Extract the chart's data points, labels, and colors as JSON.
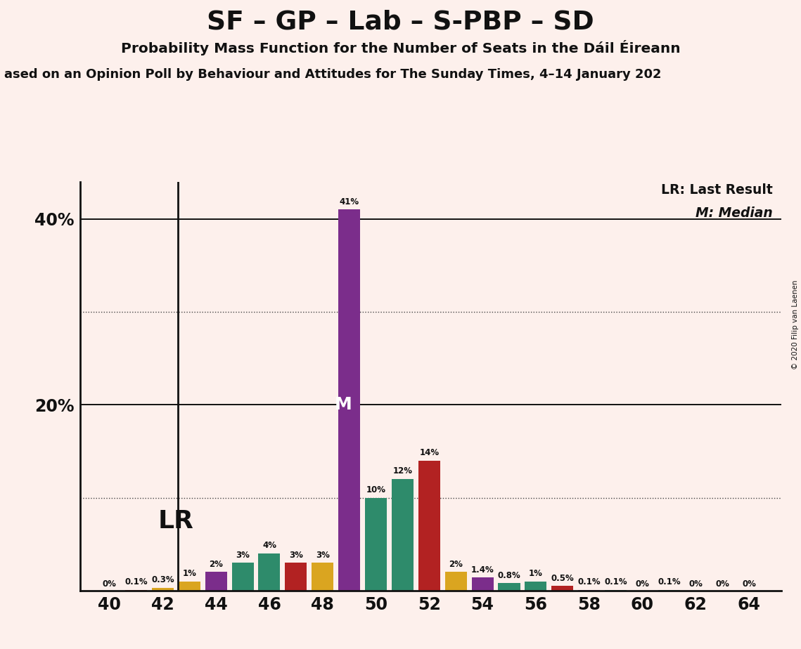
{
  "title": "SF – GP – Lab – S-PBP – SD",
  "subtitle": "Probability Mass Function for the Number of Seats in the Dáil Éireann",
  "source_line": "ased on an Opinion Poll by Behaviour and Attitudes for The Sunday Times, 4–14 January 202",
  "copyright": "© 2020 Filip van Laenen",
  "background_color": "#fdf0ec",
  "bars": [
    [
      40,
      0.0,
      "#888888"
    ],
    [
      41,
      0.1,
      "#B22222"
    ],
    [
      42,
      0.3,
      "#DAA520"
    ],
    [
      43,
      1.0,
      "#DAA520"
    ],
    [
      44,
      2.0,
      "#7B2D8B"
    ],
    [
      45,
      3.0,
      "#2E8B6B"
    ],
    [
      46,
      4.0,
      "#2E8B6B"
    ],
    [
      47,
      3.0,
      "#B22222"
    ],
    [
      48,
      3.0,
      "#DAA520"
    ],
    [
      49,
      41.0,
      "#7B2D8B"
    ],
    [
      50,
      10.0,
      "#2E8B6B"
    ],
    [
      51,
      12.0,
      "#2E8B6B"
    ],
    [
      52,
      14.0,
      "#B22222"
    ],
    [
      53,
      2.0,
      "#DAA520"
    ],
    [
      54,
      1.4,
      "#7B2D8B"
    ],
    [
      55,
      0.8,
      "#2E8B6B"
    ],
    [
      56,
      1.0,
      "#2E8B6B"
    ],
    [
      57,
      0.5,
      "#B22222"
    ],
    [
      58,
      0.1,
      "#7B2D8B"
    ],
    [
      59,
      0.1,
      "#2E8B6B"
    ],
    [
      60,
      0.0,
      "#2E8B6B"
    ],
    [
      61,
      0.1,
      "#2E8B6B"
    ],
    [
      62,
      0.0,
      "#2E8B6B"
    ],
    [
      63,
      0.0,
      "#2E8B6B"
    ],
    [
      64,
      0.0,
      "#2E8B6B"
    ]
  ],
  "lr_seat": 42,
  "median_seat": 49,
  "ylim_max": 44,
  "xticks": [
    40,
    42,
    44,
    46,
    48,
    50,
    52,
    54,
    56,
    58,
    60,
    62,
    64
  ],
  "solid_grid": [
    20,
    40
  ],
  "dotted_grid": [
    10,
    30
  ],
  "legend_lr": "LR: Last Result",
  "legend_m": "M: Median"
}
